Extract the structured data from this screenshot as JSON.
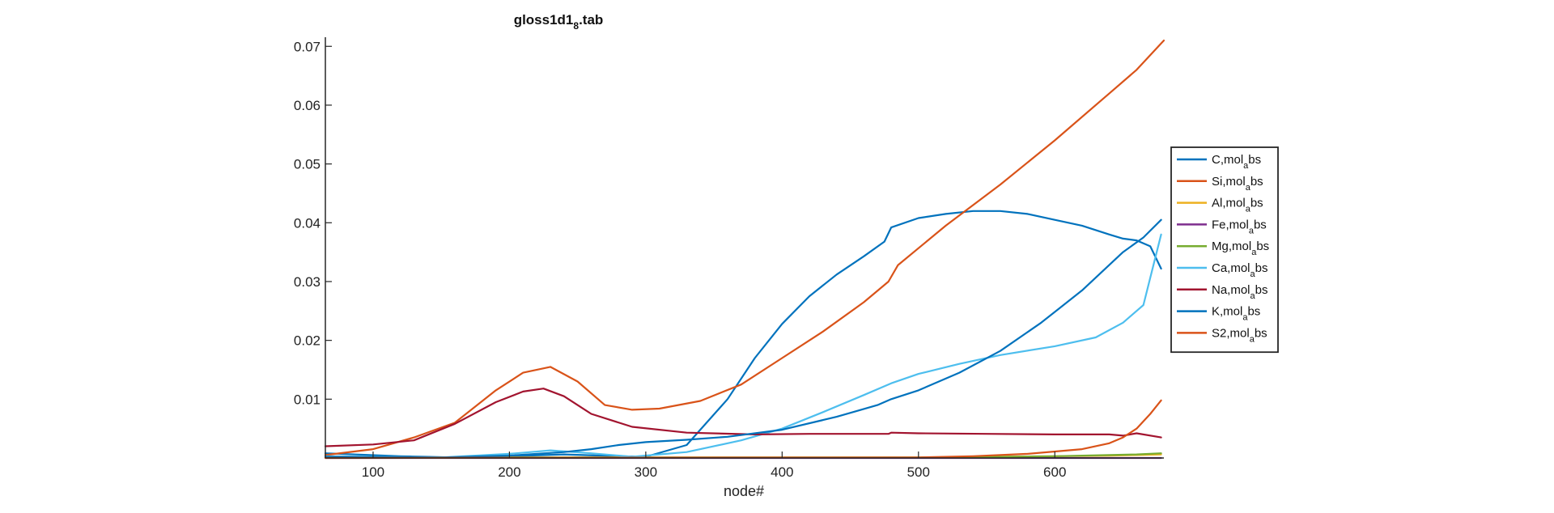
{
  "chart_data": {
    "type": "line",
    "title": "gloss1d1",
    "title_subscript": "8",
    "title_suffix": ".tab",
    "xlabel": "node#",
    "ylabel": "",
    "xlim": [
      65,
      680
    ],
    "ylim": [
      0,
      0.071
    ],
    "x_ticks": [
      100,
      200,
      300,
      400,
      500,
      600
    ],
    "y_ticks": [
      0.01,
      0.02,
      0.03,
      0.04,
      0.05,
      0.06,
      0.07
    ],
    "grid": false,
    "legend_position": "right",
    "series": [
      {
        "name": "C,mol_abs",
        "label_main": "C,mol",
        "label_sub": "a",
        "label_end": "bs",
        "color": "#0072BD",
        "x": [
          65,
          120,
          160,
          200,
          240,
          280,
          300,
          330,
          360,
          380,
          400,
          420,
          440,
          460,
          475,
          480,
          500,
          520,
          540,
          560,
          580,
          600,
          620,
          640,
          650,
          660,
          670,
          678
        ],
        "y": [
          0.0008,
          0.0003,
          0.0001,
          0.0003,
          0.0006,
          0.0003,
          0.0002,
          0.0022,
          0.01,
          0.017,
          0.0228,
          0.0275,
          0.0312,
          0.0343,
          0.0368,
          0.0392,
          0.0408,
          0.0415,
          0.042,
          0.042,
          0.0415,
          0.0405,
          0.0395,
          0.038,
          0.0373,
          0.037,
          0.036,
          0.0322
        ]
      },
      {
        "name": "Si,mol_abs",
        "label_main": "Si,mol",
        "label_sub": "a",
        "label_end": "bs",
        "color": "#D95319",
        "x": [
          65,
          100,
          130,
          160,
          190,
          210,
          230,
          250,
          270,
          290,
          310,
          340,
          370,
          400,
          430,
          460,
          478,
          485,
          520,
          560,
          600,
          640,
          660,
          680
        ],
        "y": [
          0.0005,
          0.0015,
          0.0035,
          0.006,
          0.0115,
          0.0145,
          0.0155,
          0.013,
          0.009,
          0.0082,
          0.0084,
          0.0097,
          0.0125,
          0.017,
          0.0215,
          0.0265,
          0.03,
          0.0328,
          0.0395,
          0.0465,
          0.054,
          0.062,
          0.066,
          0.071
        ]
      },
      {
        "name": "Al,mol_abs",
        "label_main": "Al,mol",
        "label_sub": "a",
        "label_end": "bs",
        "color": "#EDB120",
        "x": [
          65,
          500,
          560,
          600,
          640,
          660,
          678
        ],
        "y": [
          0.0001,
          0.0001,
          0.0002,
          0.0003,
          0.0004,
          0.0005,
          0.0006
        ]
      },
      {
        "name": "Fe,mol_abs",
        "label_main": "Fe,mol",
        "label_sub": "a",
        "label_end": "bs",
        "color": "#7E2F8E",
        "x": [
          65,
          678
        ],
        "y": [
          0.0,
          0.0
        ]
      },
      {
        "name": "Mg,mol_abs",
        "label_main": "Mg,mol",
        "label_sub": "a",
        "label_end": "bs",
        "color": "#77AC30",
        "x": [
          65,
          500,
          560,
          600,
          640,
          660,
          678
        ],
        "y": [
          0.0001,
          0.0001,
          0.0002,
          0.0003,
          0.0005,
          0.0006,
          0.0008
        ]
      },
      {
        "name": "Ca,mol_abs",
        "label_main": "Ca,mol",
        "label_sub": "a",
        "label_end": "bs",
        "color": "#4DBEEE",
        "x": [
          65,
          150,
          200,
          230,
          260,
          290,
          330,
          370,
          400,
          430,
          460,
          480,
          500,
          530,
          560,
          600,
          630,
          650,
          665,
          678
        ],
        "y": [
          0.0003,
          0.0001,
          0.0007,
          0.0013,
          0.0008,
          0.0002,
          0.001,
          0.003,
          0.005,
          0.0078,
          0.0107,
          0.0127,
          0.0143,
          0.016,
          0.0175,
          0.019,
          0.0205,
          0.023,
          0.026,
          0.038
        ]
      },
      {
        "name": "Na,mol_abs",
        "label_main": "Na,mol",
        "label_sub": "a",
        "label_end": "bs",
        "color": "#A2142F",
        "x": [
          65,
          100,
          130,
          160,
          190,
          210,
          225,
          240,
          260,
          290,
          330,
          380,
          420,
          460,
          478,
          480,
          500,
          550,
          600,
          640,
          650,
          660,
          678
        ],
        "y": [
          0.002,
          0.0023,
          0.003,
          0.0058,
          0.0095,
          0.0113,
          0.0118,
          0.0105,
          0.0075,
          0.0053,
          0.0043,
          0.004,
          0.0041,
          0.0041,
          0.0041,
          0.0043,
          0.0042,
          0.0041,
          0.004,
          0.004,
          0.0038,
          0.0042,
          0.0035
        ]
      },
      {
        "name": "K,mol_abs",
        "label_main": "K,mol",
        "label_sub": "a",
        "label_end": "bs",
        "color": "#0072BD",
        "x": [
          65,
          150,
          200,
          240,
          260,
          280,
          300,
          330,
          360,
          400,
          440,
          470,
          480,
          500,
          530,
          560,
          590,
          620,
          650,
          665,
          678
        ],
        "y": [
          0.0002,
          0.0001,
          0.0004,
          0.001,
          0.0015,
          0.0022,
          0.0027,
          0.0031,
          0.0036,
          0.0048,
          0.007,
          0.009,
          0.01,
          0.0115,
          0.0145,
          0.0182,
          0.023,
          0.0285,
          0.035,
          0.0375,
          0.0405
        ]
      },
      {
        "name": "S2,mol_abs",
        "label_main": "S2,mol",
        "label_sub": "a",
        "label_end": "bs",
        "color": "#D95319",
        "x": [
          65,
          500,
          540,
          580,
          620,
          640,
          650,
          660,
          670,
          678
        ],
        "y": [
          0.0,
          0.0001,
          0.0003,
          0.0007,
          0.0015,
          0.0025,
          0.0035,
          0.005,
          0.0075,
          0.0098
        ]
      }
    ]
  }
}
